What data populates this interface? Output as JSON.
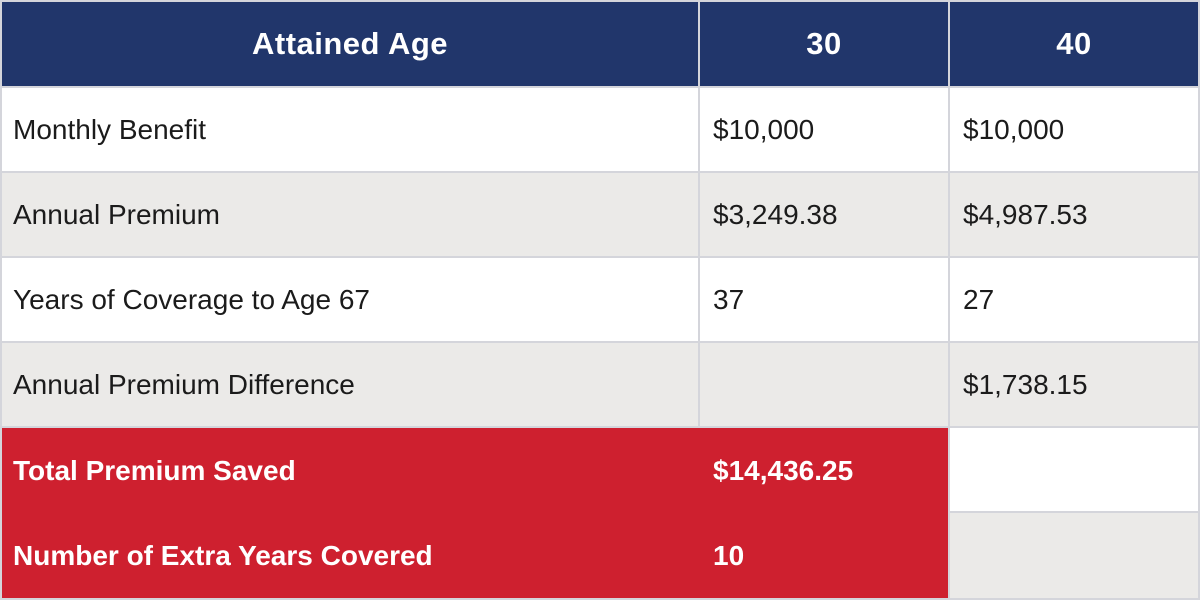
{
  "title": "Attained Age premium comparison table",
  "colors": {
    "header_bg": "#21366b",
    "highlight_bg": "#ce202f",
    "row_bg": "#ffffff",
    "row_alt_bg": "#ebeae8",
    "border": "#d4d5db",
    "header_text": "#ffffff",
    "body_text": "#1b1b1b",
    "highlight_text": "#ffffff"
  },
  "table": {
    "header": [
      "Attained Age",
      "30",
      "40"
    ],
    "rows": [
      {
        "label": "Monthly Benefit",
        "values": [
          "$10,000",
          "$10,000"
        ]
      },
      {
        "label": "Annual Premium",
        "values": [
          "$3,249.38",
          "$4,987.53"
        ]
      },
      {
        "label": "Years of Coverage to Age 67",
        "values": [
          "37",
          "27"
        ]
      },
      {
        "label": "Annual Premium Difference",
        "values": [
          "",
          "$1,738.15"
        ]
      }
    ],
    "summary_rows": [
      {
        "label": "Total Premium Saved",
        "value": "$14,436.25"
      },
      {
        "label": "Number of Extra Years Covered",
        "value": "10"
      }
    ]
  },
  "chart_data": {
    "type": "table",
    "title": "Attained Age premium comparison",
    "columns": [
      "Attained Age",
      "30",
      "40"
    ],
    "rows": [
      [
        "Monthly Benefit",
        "$10,000",
        "$10,000"
      ],
      [
        "Annual Premium",
        "$3,249.38",
        "$4,987.53"
      ],
      [
        "Years of Coverage to Age 67",
        "37",
        "27"
      ],
      [
        "Annual Premium Difference",
        "",
        "$1,738.15"
      ],
      [
        "Total Premium Saved",
        "$14,436.25",
        ""
      ],
      [
        "Number of Extra Years Covered",
        "10",
        ""
      ]
    ]
  }
}
